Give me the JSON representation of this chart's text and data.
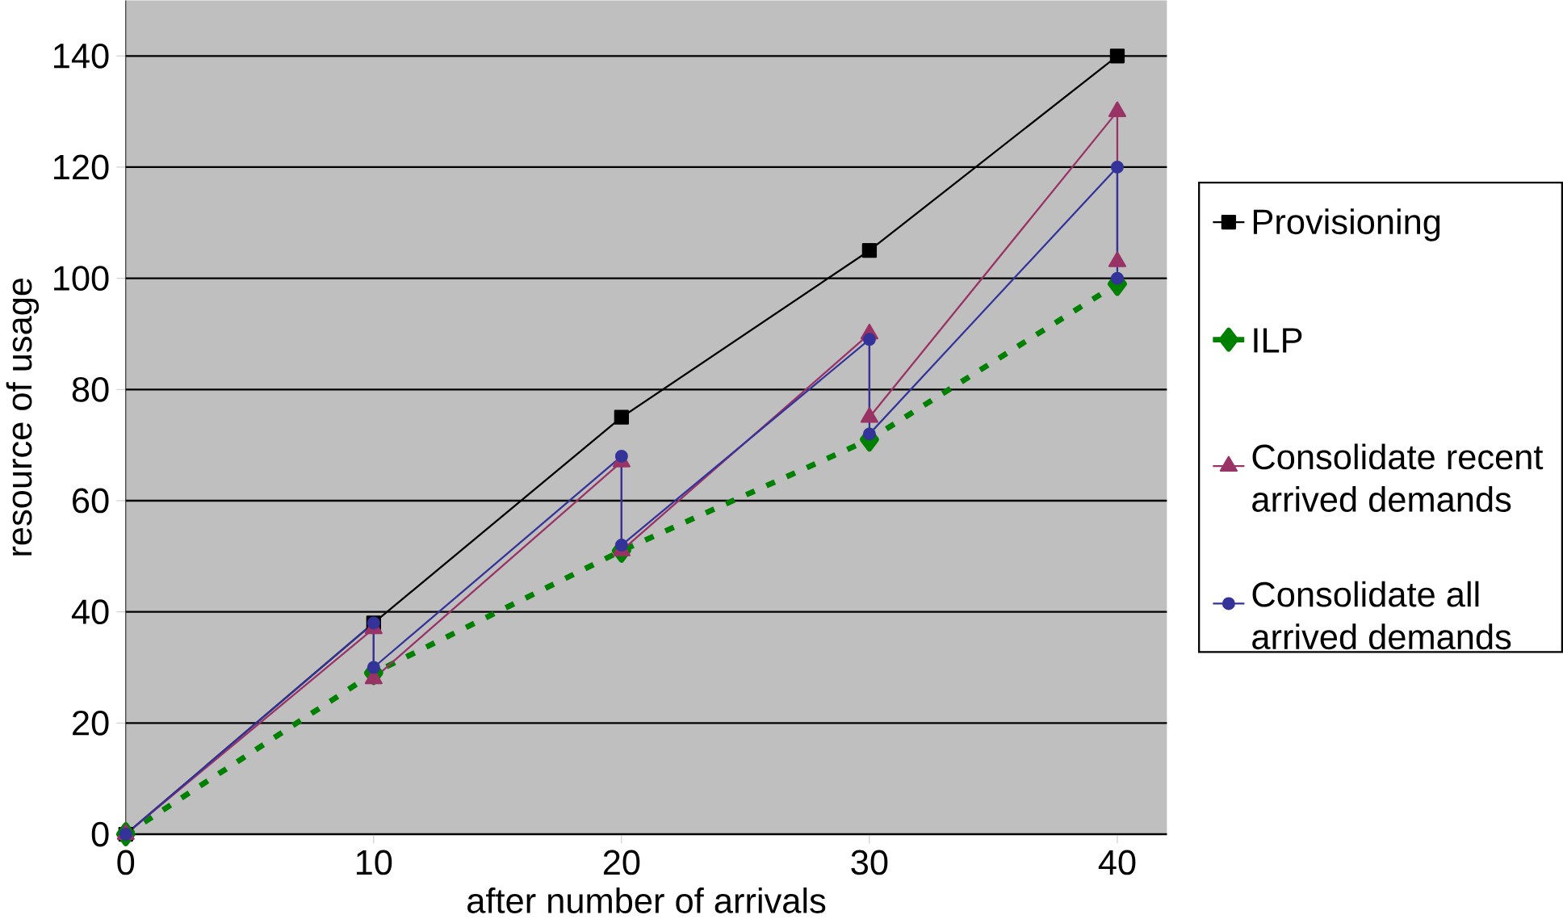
{
  "chart_data": {
    "type": "line",
    "xlabel": "after number of arrivals",
    "ylabel": "resource of usage",
    "xlim": [
      0,
      42
    ],
    "ylim": [
      0,
      150
    ],
    "xticks": [
      0,
      10,
      20,
      30,
      40
    ],
    "yticks": [
      0,
      20,
      40,
      60,
      80,
      100,
      120,
      140
    ],
    "grid": "y",
    "legend": "right",
    "series": [
      {
        "name": "Provisioning",
        "color": "#000000",
        "marker": "square",
        "line_style": "solid",
        "x": [
          0,
          10,
          20,
          30,
          40
        ],
        "values": [
          0,
          38,
          75,
          105,
          140
        ]
      },
      {
        "name": "ILP",
        "color": "#008000",
        "marker": "diamond",
        "line_style": "dotted",
        "x": [
          0,
          10,
          20,
          30,
          40
        ],
        "values": [
          0,
          29,
          51,
          71,
          99
        ]
      },
      {
        "name": "Consolidate recent arrived demands",
        "color": "#993366",
        "marker": "triangle",
        "line_style": "solid",
        "x": [
          0,
          10,
          10,
          20,
          20,
          30,
          30,
          40,
          40
        ],
        "values": [
          0,
          37,
          28,
          67,
          51,
          90,
          75,
          130,
          103
        ]
      },
      {
        "name": "Consolidate all arrived demands",
        "color": "#333399",
        "marker": "circle",
        "line_style": "solid",
        "x": [
          0,
          10,
          10,
          20,
          20,
          30,
          30,
          40,
          40
        ],
        "values": [
          0,
          38,
          30,
          68,
          52,
          89,
          72,
          120,
          100
        ]
      }
    ]
  }
}
